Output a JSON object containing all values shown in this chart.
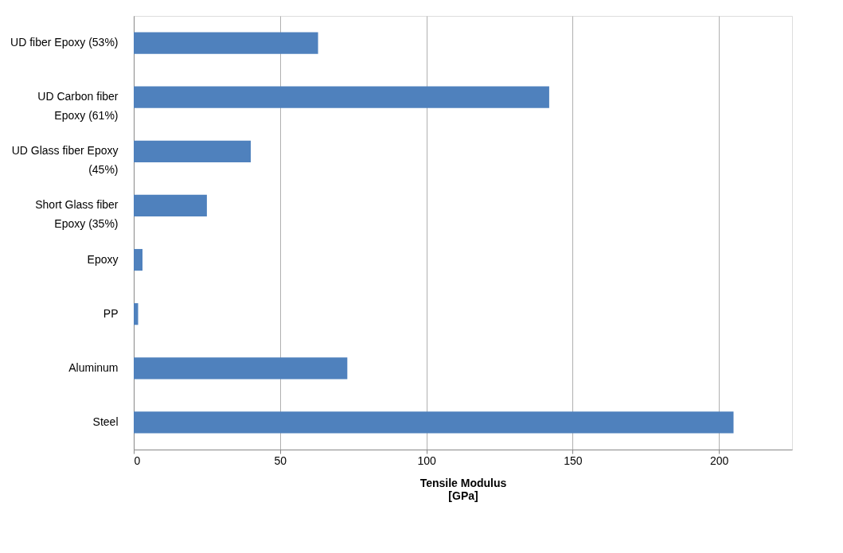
{
  "chart_data": {
    "type": "bar",
    "orientation": "horizontal",
    "xlabel": "Tensile Modulus [GPa]",
    "categories": [
      "UD fiber Epoxy (53%)",
      "UD Carbon fiber Epoxy (61%)",
      "UD Glass fiber Epoxy (45%)",
      "Short Glass fiber Epoxy (35%)",
      "Epoxy",
      "PP",
      "Aluminum",
      "Steel"
    ],
    "values": [
      63,
      142,
      40,
      25,
      3,
      1.5,
      73,
      205
    ],
    "color": "#4f81bd",
    "xlim": [
      0,
      225
    ],
    "xticks": [
      0,
      50,
      100,
      150,
      200
    ],
    "grid": "x"
  }
}
